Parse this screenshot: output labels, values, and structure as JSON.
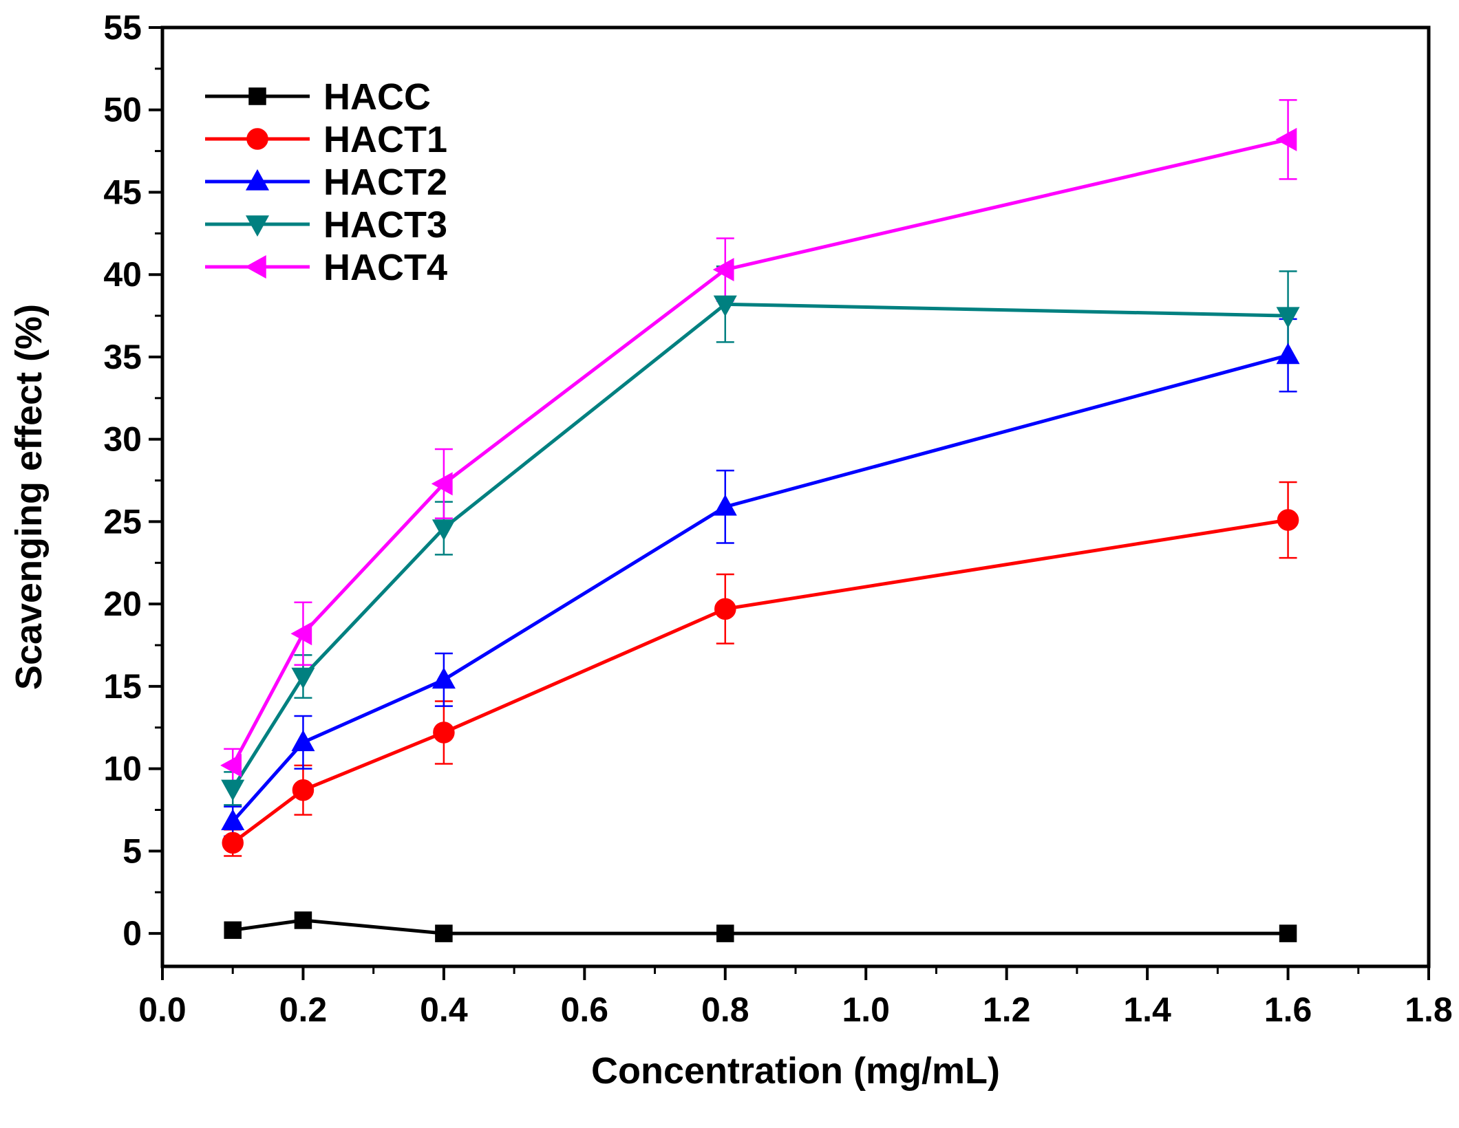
{
  "chart_data": {
    "type": "line",
    "title": "",
    "xlabel": "Concentration (mg/mL)",
    "ylabel": "Scavenging effect (%)",
    "xlim": [
      0.0,
      1.8
    ],
    "ylim": [
      -2,
      55
    ],
    "xticks": [
      0.0,
      0.2,
      0.4,
      0.6,
      0.8,
      1.0,
      1.2,
      1.4,
      1.6,
      1.8
    ],
    "xtick_labels": [
      "0.0",
      "0.2",
      "0.4",
      "0.6",
      "0.8",
      "1.0",
      "1.2",
      "1.4",
      "1.6",
      "1.8"
    ],
    "yticks": [
      0,
      5,
      10,
      15,
      20,
      25,
      30,
      35,
      40,
      45,
      50,
      55
    ],
    "ytick_labels": [
      "0",
      "5",
      "10",
      "15",
      "20",
      "25",
      "30",
      "35",
      "40",
      "45",
      "50",
      "55"
    ],
    "grid": false,
    "legend_position": "top-left",
    "x": [
      0.1,
      0.2,
      0.4,
      0.8,
      1.6
    ],
    "series": [
      {
        "name": "HACC",
        "color": "#000000",
        "marker": "square",
        "values": [
          0.2,
          0.8,
          0.0,
          0.0,
          0.0
        ],
        "errors": [
          0,
          0,
          0,
          0,
          0
        ]
      },
      {
        "name": "HACT1",
        "color": "#ff0000",
        "marker": "circle",
        "values": [
          5.5,
          8.7,
          12.2,
          19.7,
          25.1
        ],
        "errors": [
          0.8,
          1.5,
          1.9,
          2.1,
          2.3
        ]
      },
      {
        "name": "HACT2",
        "color": "#0000ff",
        "marker": "triangle-up",
        "values": [
          6.8,
          11.6,
          15.4,
          25.9,
          35.1
        ],
        "errors": [
          0.9,
          1.6,
          1.6,
          2.2,
          2.2
        ]
      },
      {
        "name": "HACT3",
        "color": "#008080",
        "marker": "triangle-down",
        "values": [
          8.8,
          15.6,
          24.6,
          38.2,
          37.5
        ],
        "errors": [
          1.0,
          1.3,
          1.6,
          2.3,
          2.7
        ]
      },
      {
        "name": "HACT4",
        "color": "#ff00ff",
        "marker": "triangle-left",
        "values": [
          10.2,
          18.2,
          27.3,
          40.3,
          48.2
        ],
        "errors": [
          1.0,
          1.9,
          2.1,
          1.9,
          2.4
        ]
      }
    ]
  }
}
